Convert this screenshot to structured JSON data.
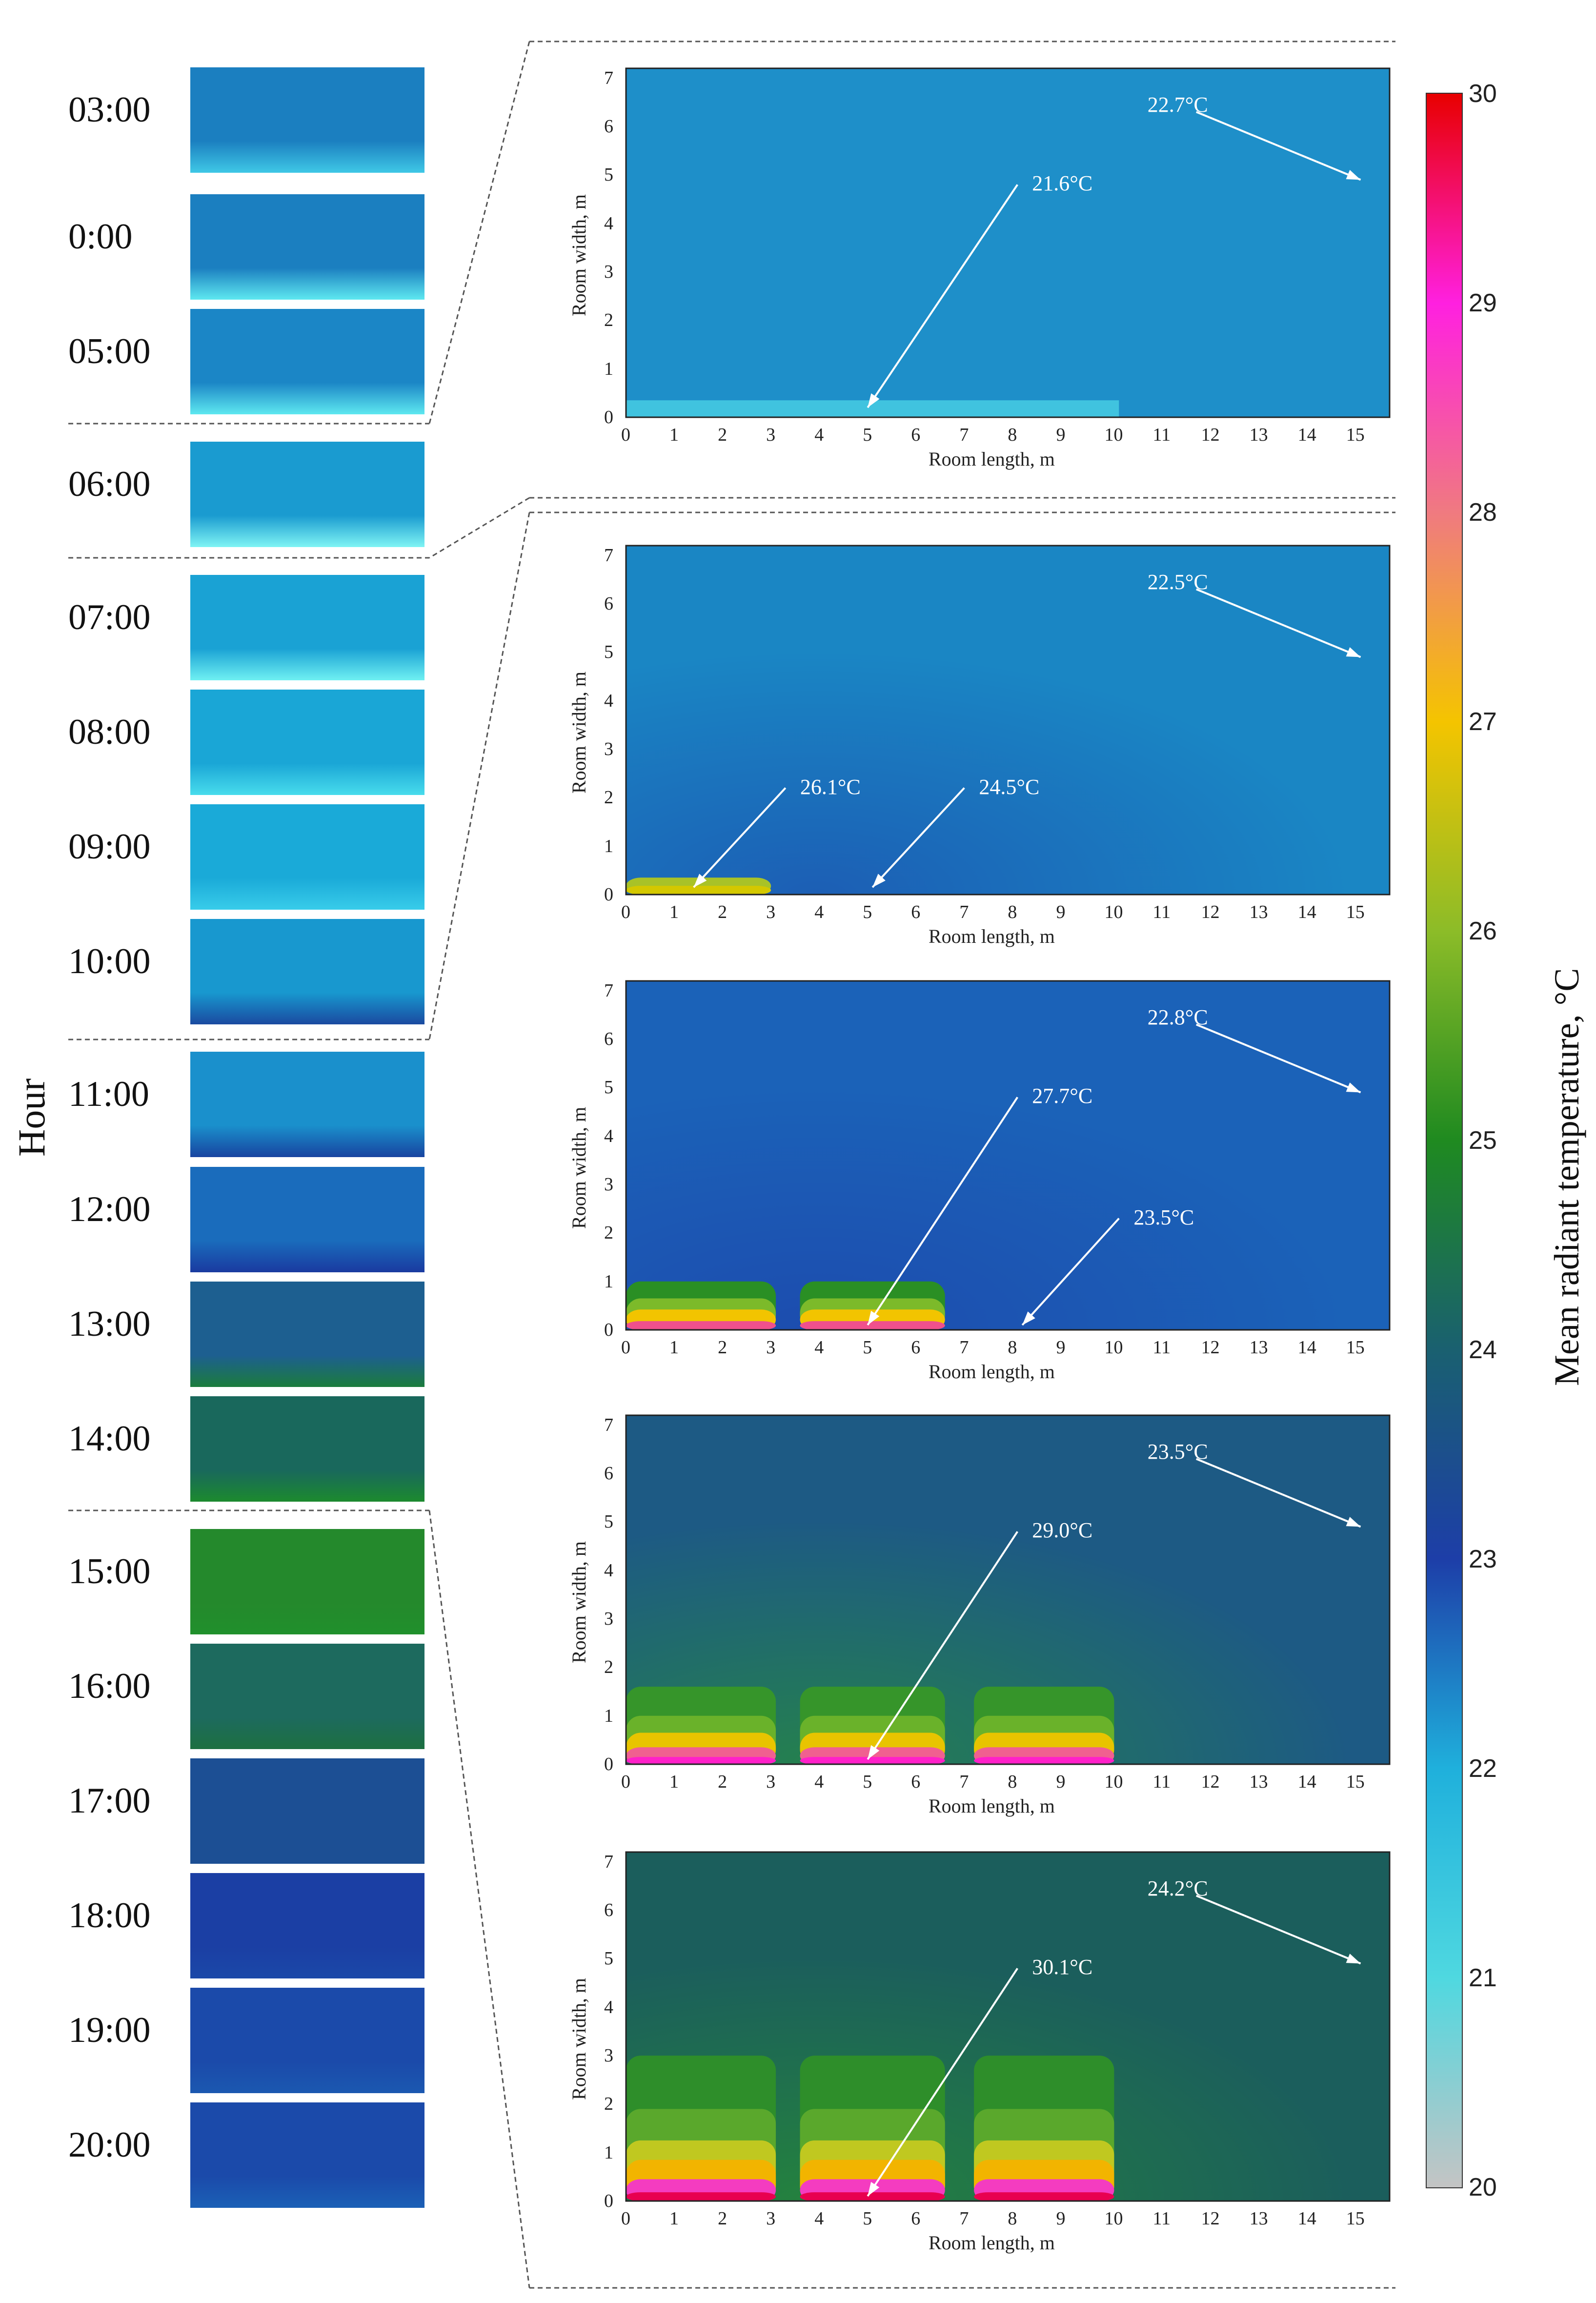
{
  "hours": [
    {
      "id": "h0300",
      "label": "03:00",
      "tone": "#1b7fc0",
      "bottom": "#3fc8e6"
    },
    {
      "id": "h0000",
      "label": "0:00",
      "tone": "#1b7fc0",
      "bottom": "#5ee8f0"
    },
    {
      "id": "h0500",
      "label": "05:00",
      "tone": "#1b86c6",
      "bottom": "#5ee8f0"
    },
    {
      "id": "h0600",
      "label": "06:00",
      "tone": "#1a9bd0",
      "bottom": "#7ff4f4"
    },
    {
      "id": "h0700",
      "label": "07:00",
      "tone": "#1aa2d4",
      "bottom": "#6ff0f2"
    },
    {
      "id": "h0800",
      "label": "08:00",
      "tone": "#1aa6d6",
      "bottom": "#48dcec"
    },
    {
      "id": "h0900",
      "label": "09:00",
      "tone": "#1aaad8",
      "bottom": "#38ccea"
    },
    {
      "id": "h1000",
      "label": "10:00",
      "tone": "#1898cf",
      "bottom": "#1a4aa0"
    },
    {
      "id": "h1100",
      "label": "11:00",
      "tone": "#1a90cc",
      "bottom": "#1844a0"
    },
    {
      "id": "h1200",
      "label": "12:00",
      "tone": "#1a6cbc",
      "bottom": "#1a3aa0"
    },
    {
      "id": "h1300",
      "label": "13:00",
      "tone": "#1d5f90",
      "bottom": "#1b7c3c"
    },
    {
      "id": "h1400",
      "label": "14:00",
      "tone": "#19685c",
      "bottom": "#1c8a2e"
    },
    {
      "id": "h1500",
      "label": "15:00",
      "tone": "#24892c",
      "bottom": "#20902c"
    },
    {
      "id": "h1600",
      "label": "16:00",
      "tone": "#1d6a5e",
      "bottom": "#1d7040"
    },
    {
      "id": "h1700",
      "label": "17:00",
      "tone": "#1c4f94",
      "bottom": "#1c4f94"
    },
    {
      "id": "h1800",
      "label": "18:00",
      "tone": "#1b3fa4",
      "bottom": "#1b48a8"
    },
    {
      "id": "h1900",
      "label": "19:00",
      "tone": "#1b4aaa",
      "bottom": "#1b58b0"
    },
    {
      "id": "h2000",
      "label": "20:00",
      "tone": "#1b4aaa",
      "bottom": "#1b60b6"
    }
  ],
  "y_axis_title": "Hour",
  "chart_data": [
    {
      "type": "heatmap",
      "panel": "06:00",
      "xlabel": "Room length, m",
      "ylabel": "Room width, m",
      "xlim": [
        0,
        15.8
      ],
      "ylim": [
        0,
        7.2
      ],
      "xticks": [
        "0",
        "1",
        "2",
        "3",
        "4",
        "5",
        "6",
        "7",
        "8",
        "9",
        "10",
        "11",
        "12",
        "13",
        "14",
        "15"
      ],
      "yticks": [
        "0",
        "1",
        "2",
        "3",
        "4",
        "5",
        "6",
        "7"
      ],
      "background": "#1e8fc9",
      "annotations": [
        {
          "text": "22.7°C",
          "arrow_from": [
            11.8,
            6.3
          ],
          "arrow_to": [
            15.2,
            4.9
          ]
        },
        {
          "text": "21.6°C",
          "arrow_from": [
            8.1,
            4.8
          ],
          "arrow_to": [
            5.0,
            0.2
          ]
        }
      ]
    },
    {
      "type": "heatmap",
      "panel": "11:00",
      "xlabel": "Room length, m",
      "ylabel": "Room width, m",
      "xlim": [
        0,
        15.8
      ],
      "ylim": [
        0,
        7.2
      ],
      "xticks": [
        "0",
        "1",
        "2",
        "3",
        "4",
        "5",
        "6",
        "7",
        "8",
        "9",
        "10",
        "11",
        "12",
        "13",
        "14",
        "15"
      ],
      "yticks": [
        "0",
        "1",
        "2",
        "3",
        "4",
        "5",
        "6",
        "7"
      ],
      "background": "#1a86c4",
      "annotations": [
        {
          "text": "22.5°C",
          "arrow_from": [
            11.8,
            6.3
          ],
          "arrow_to": [
            15.2,
            4.9
          ]
        },
        {
          "text": "26.1°C",
          "arrow_from": [
            3.3,
            2.2
          ],
          "arrow_to": [
            1.4,
            0.15
          ]
        },
        {
          "text": "24.5°C",
          "arrow_from": [
            7.0,
            2.2
          ],
          "arrow_to": [
            5.1,
            0.15
          ]
        }
      ]
    },
    {
      "type": "heatmap",
      "panel": "12:00",
      "xlabel": "Room length, m",
      "ylabel": "Room width, m",
      "xlim": [
        0,
        15.8
      ],
      "ylim": [
        0,
        7.2
      ],
      "xticks": [
        "0",
        "1",
        "2",
        "3",
        "4",
        "5",
        "6",
        "7",
        "8",
        "9",
        "10",
        "11",
        "12",
        "13",
        "14",
        "15"
      ],
      "yticks": [
        "0",
        "1",
        "2",
        "3",
        "4",
        "5",
        "6",
        "7"
      ],
      "background": "#1b62b8",
      "annotations": [
        {
          "text": "22.8°C",
          "arrow_from": [
            11.8,
            6.3
          ],
          "arrow_to": [
            15.2,
            4.9
          ]
        },
        {
          "text": "27.7°C",
          "arrow_from": [
            8.1,
            4.8
          ],
          "arrow_to": [
            5.0,
            0.1
          ]
        },
        {
          "text": "23.5°C",
          "arrow_from": [
            10.2,
            2.3
          ],
          "arrow_to": [
            8.2,
            0.1
          ]
        }
      ]
    },
    {
      "type": "heatmap",
      "panel": "13:00",
      "xlabel": "Room length, m",
      "ylabel": "Room width, m",
      "xlim": [
        0,
        15.8
      ],
      "ylim": [
        0,
        7.2
      ],
      "xticks": [
        "0",
        "1",
        "2",
        "3",
        "4",
        "5",
        "6",
        "7",
        "8",
        "9",
        "10",
        "11",
        "12",
        "13",
        "14",
        "15"
      ],
      "yticks": [
        "0",
        "1",
        "2",
        "3",
        "4",
        "5",
        "6",
        "7"
      ],
      "background": "#1d5a84",
      "annotations": [
        {
          "text": "23.5°C",
          "arrow_from": [
            11.8,
            6.3
          ],
          "arrow_to": [
            15.2,
            4.9
          ]
        },
        {
          "text": "29.0°C",
          "arrow_from": [
            8.1,
            4.8
          ],
          "arrow_to": [
            5.0,
            0.1
          ]
        }
      ]
    },
    {
      "type": "heatmap",
      "panel": "14:00",
      "xlabel": "Room length, m",
      "ylabel": "Room width, m",
      "xlim": [
        0,
        15.8
      ],
      "ylim": [
        0,
        7.2
      ],
      "xticks": [
        "0",
        "1",
        "2",
        "3",
        "4",
        "5",
        "6",
        "7",
        "8",
        "9",
        "10",
        "11",
        "12",
        "13",
        "14",
        "15"
      ],
      "yticks": [
        "0",
        "1",
        "2",
        "3",
        "4",
        "5",
        "6",
        "7"
      ],
      "background": "#1b5e5c",
      "annotations": [
        {
          "text": "24.2°C",
          "arrow_from": [
            11.8,
            6.3
          ],
          "arrow_to": [
            15.2,
            4.9
          ]
        },
        {
          "text": "30.1°C",
          "arrow_from": [
            8.1,
            4.8
          ],
          "arrow_to": [
            5.0,
            0.1
          ]
        }
      ]
    }
  ],
  "colorbar": {
    "title": "Mean radiant temperature, °C",
    "range": [
      20,
      30
    ],
    "ticks": [
      "20",
      "21",
      "22",
      "23",
      "24",
      "25",
      "26",
      "27",
      "28",
      "29",
      "30"
    ],
    "stops": [
      "#c4c4c4",
      "#4fd8e0",
      "#1fb0dc",
      "#1d3ea8",
      "#1a6070",
      "#1f8a20",
      "#8cbc28",
      "#f4c400",
      "#f07a80",
      "#ff20e0",
      "#e80000"
    ]
  }
}
